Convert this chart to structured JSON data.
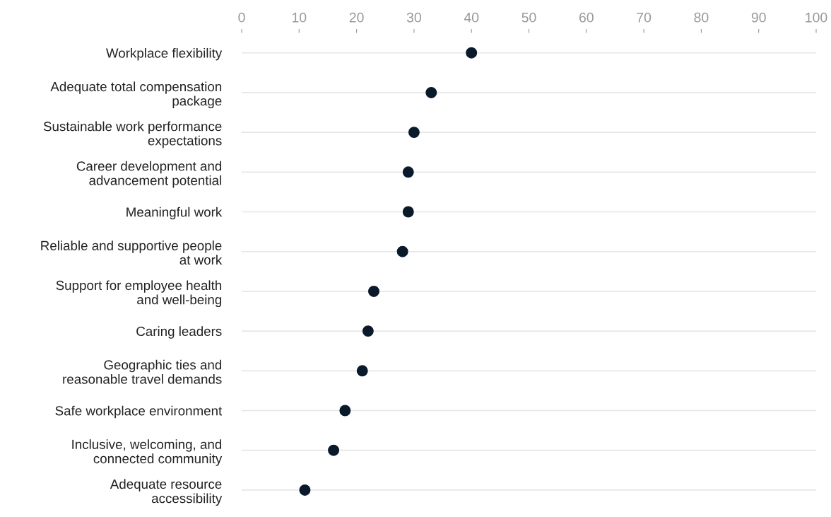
{
  "chart_data": {
    "type": "scatter",
    "categories": [
      "Workplace flexibility",
      "Adequate total compensation\npackage",
      "Sustainable work performance\nexpectations",
      "Career development and\nadvancement potential",
      "Meaningful work",
      "Reliable and supportive people\nat work",
      "Support for employee health\nand well-being",
      "Caring leaders",
      "Geographic ties and\nreasonable travel demands",
      "Safe workplace environment",
      "Inclusive, welcoming, and\nconnected community",
      "Adequate resource\naccessibility"
    ],
    "orientation": "horizontal",
    "values": [
      40,
      33,
      30,
      29,
      29,
      28,
      23,
      22,
      21,
      18,
      16,
      11
    ],
    "color": "#0b1a2b",
    "marker": "circle",
    "xlim": [
      0,
      100
    ],
    "xticks": [
      0,
      10,
      20,
      30,
      40,
      50,
      60,
      70,
      80,
      90,
      100
    ],
    "grid": "y"
  }
}
